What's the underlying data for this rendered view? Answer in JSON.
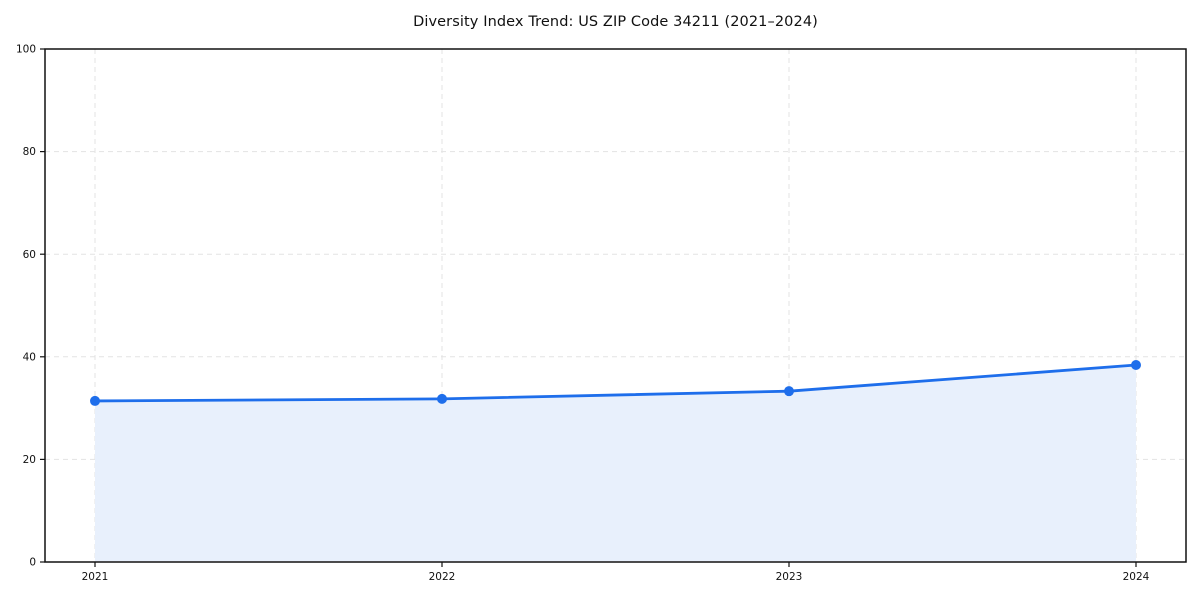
{
  "page": {
    "background": "#ffffff"
  },
  "chart_data": {
    "type": "area",
    "title": "Diversity Index Trend: US ZIP Code 34211 (2021–2024)",
    "x": [
      "2021",
      "2022",
      "2023",
      "2024"
    ],
    "series": [
      {
        "name": "Diversity Index",
        "values": [
          31.4,
          31.8,
          33.3,
          38.4
        ]
      }
    ],
    "xlabel": "",
    "ylabel": "",
    "ylim": [
      0,
      100
    ],
    "yticks": [
      0,
      20,
      40,
      60,
      80,
      100
    ],
    "grid": true,
    "grid_style": "dashed",
    "legend_position": "none",
    "line_color": "#1e6eeb",
    "marker_color": "#1e6eeb",
    "fill_color": "#e8f0fc",
    "axis_color": "#111111",
    "grid_color": "#e3e3e3",
    "text_color": "#111111"
  }
}
